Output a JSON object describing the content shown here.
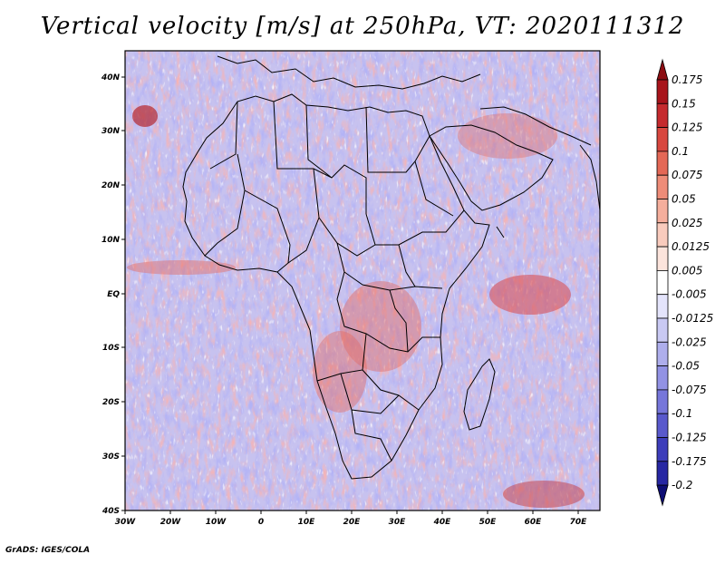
{
  "title": "Vertical velocity [m/s] at 250hPa, VT: 2020111312",
  "footer": "GrADS: IGES/COLA",
  "map": {
    "lat_labels": [
      "40N",
      "30N",
      "20N",
      "10N",
      "EQ",
      "10S",
      "20S",
      "30S",
      "40S"
    ],
    "lon_labels": [
      "30W",
      "20W",
      "10W",
      "0",
      "10E",
      "20E",
      "30E",
      "40E",
      "50E",
      "60E",
      "70E"
    ]
  },
  "colorbar": {
    "levels": [
      "0.175",
      "0.15",
      "0.125",
      "0.1",
      "0.075",
      "0.05",
      "0.025",
      "0.0125",
      "0.005",
      "-0.005",
      "-0.0125",
      "-0.025",
      "-0.05",
      "-0.075",
      "-0.1",
      "-0.125",
      "-0.175",
      "-0.2"
    ],
    "colors": [
      "#a8141b",
      "#c52a2e",
      "#d8473f",
      "#e46856",
      "#ee8c78",
      "#f5ae9c",
      "#f9cbbd",
      "#fce4dc",
      "#ffffff",
      "#e4e4fb",
      "#c9c9f3",
      "#aeaeec",
      "#9292e4",
      "#7676da",
      "#5959cc",
      "#3d3dba",
      "#2727a3",
      "#18188a"
    ],
    "top_color": "#8c0d12",
    "bottom_color": "#0e0e74"
  }
}
